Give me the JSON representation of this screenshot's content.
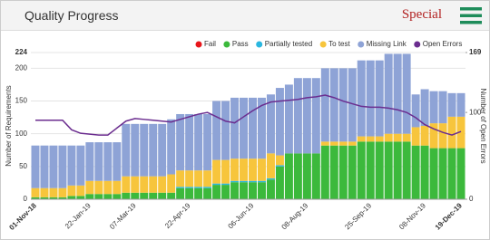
{
  "header": {
    "title": "Quality Progress",
    "button": "Special"
  },
  "chart_data": {
    "type": "stacked-bar-line",
    "categories": [
      "01-Nov-18",
      null,
      null,
      null,
      null,
      null,
      "22-Jan-19",
      null,
      null,
      null,
      null,
      "07-Mar-19",
      null,
      null,
      null,
      null,
      null,
      "22-Apr-19",
      null,
      null,
      null,
      null,
      null,
      null,
      "06-Jun-19",
      null,
      null,
      null,
      null,
      null,
      "08-Aug-19",
      null,
      null,
      null,
      null,
      null,
      null,
      "25-Sep-19",
      null,
      null,
      null,
      null,
      null,
      "08-Nov-19",
      null,
      null,
      null,
      "19-Dec-19"
    ],
    "series": [
      {
        "name": "Fail",
        "color": "#e8161b",
        "values": [
          0,
          0,
          0,
          0,
          0,
          0,
          0,
          0,
          0,
          0,
          0,
          0,
          0,
          0,
          0,
          0,
          0,
          0,
          0,
          0,
          0,
          0,
          0,
          0,
          0,
          0,
          0,
          0,
          0,
          0,
          0,
          0,
          0,
          0,
          0,
          0,
          0,
          0,
          0,
          0,
          0,
          0,
          0,
          0,
          0,
          0,
          0,
          0
        ]
      },
      {
        "name": "Pass",
        "color": "#3cb93c",
        "values": [
          3,
          3,
          3,
          3,
          5,
          5,
          8,
          8,
          8,
          8,
          10,
          10,
          10,
          10,
          10,
          10,
          17,
          17,
          17,
          17,
          22,
          22,
          26,
          26,
          26,
          26,
          30,
          50,
          70,
          70,
          70,
          70,
          82,
          82,
          82,
          82,
          88,
          88,
          88,
          88,
          88,
          88,
          82,
          82,
          78,
          78,
          78,
          78
        ]
      },
      {
        "name": "Partially tested",
        "color": "#2ab7e0",
        "values": [
          0,
          0,
          0,
          0,
          0,
          0,
          0,
          0,
          0,
          0,
          0,
          0,
          0,
          0,
          0,
          0,
          2,
          2,
          2,
          2,
          2,
          2,
          2,
          2,
          2,
          2,
          2,
          2,
          0,
          0,
          0,
          0,
          0,
          0,
          0,
          0,
          0,
          0,
          0,
          0,
          0,
          0,
          0,
          0,
          0,
          0,
          0,
          0
        ]
      },
      {
        "name": "To test",
        "color": "#f7c53c",
        "values": [
          14,
          14,
          14,
          14,
          16,
          16,
          20,
          20,
          20,
          20,
          25,
          25,
          25,
          25,
          25,
          28,
          25,
          25,
          25,
          25,
          36,
          36,
          34,
          34,
          34,
          34,
          38,
          15,
          0,
          0,
          0,
          0,
          6,
          6,
          6,
          6,
          8,
          8,
          8,
          12,
          12,
          12,
          28,
          30,
          38,
          38,
          48,
          48
        ]
      },
      {
        "name": "Missing Link",
        "color": "#8ea3d6",
        "values": [
          65,
          65,
          65,
          65,
          61,
          61,
          59,
          59,
          59,
          59,
          80,
          80,
          80,
          80,
          80,
          84,
          86,
          86,
          86,
          86,
          90,
          90,
          93,
          93,
          93,
          93,
          90,
          103,
          105,
          115,
          115,
          115,
          112,
          112,
          112,
          112,
          116,
          116,
          116,
          122,
          122,
          122,
          50,
          56,
          49,
          49,
          36,
          36
        ]
      },
      {
        "name": "Open Errors",
        "color": "#6b2d8f",
        "axis": "y2",
        "type": "line",
        "values": [
          91,
          91,
          91,
          91,
          80,
          76,
          75,
          74,
          74,
          82,
          90,
          93,
          92,
          91,
          90,
          89,
          92,
          95,
          98,
          100,
          95,
          90,
          88,
          95,
          102,
          108,
          112,
          113,
          114,
          115,
          117,
          118,
          120,
          117,
          113,
          110,
          107,
          106,
          106,
          105,
          103,
          100,
          94,
          86,
          81,
          77,
          74,
          78
        ]
      }
    ],
    "ylabel": "Number of Requirements",
    "y2label": "Number of Open Errors",
    "ylim": [
      0,
      224
    ],
    "yticks": [
      0,
      50,
      100,
      150,
      200,
      224
    ],
    "y2lim": [
      0,
      169
    ],
    "y2ticks": [
      0,
      100,
      169
    ],
    "grid": true,
    "legend": "top-right"
  }
}
